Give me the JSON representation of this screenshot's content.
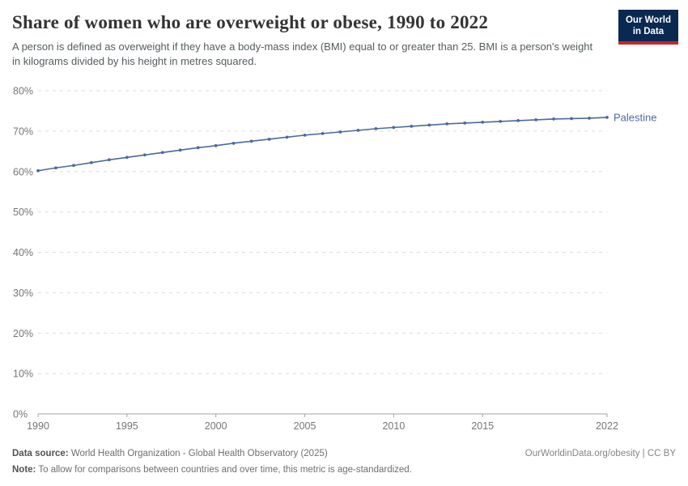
{
  "header": {
    "title": "Share of women who are overweight or obese, 1990 to 2022",
    "subtitle": "A person is defined as overweight if they have a body-mass index (BMI) equal to or greater than 25. BMI is a person's weight in kilograms divided by his height in metres squared.",
    "logo": {
      "line1": "Our World",
      "line2": "in Data"
    }
  },
  "colors": {
    "line": "#4C6A9E",
    "logo_bg": "#0A2951",
    "logo_red": "#C5262E",
    "gridline": "#DBDBDB",
    "axis": "#A3A3A3",
    "tick_label": "#757575"
  },
  "chart_data": {
    "type": "line",
    "title": "Share of women who are overweight or obese, 1990 to 2022",
    "xlabel": "",
    "ylabel": "",
    "x": [
      1990,
      1991,
      1992,
      1993,
      1994,
      1995,
      1996,
      1997,
      1998,
      1999,
      2000,
      2001,
      2002,
      2003,
      2004,
      2005,
      2006,
      2007,
      2008,
      2009,
      2010,
      2011,
      2012,
      2013,
      2014,
      2015,
      2016,
      2017,
      2018,
      2019,
      2020,
      2021,
      2022
    ],
    "series": [
      {
        "name": "Palestine",
        "color": "#4C6A9E",
        "values": [
          60.2,
          60.9,
          61.5,
          62.2,
          62.9,
          63.5,
          64.1,
          64.7,
          65.3,
          65.9,
          66.4,
          67.0,
          67.5,
          68.0,
          68.5,
          69.0,
          69.4,
          69.8,
          70.2,
          70.6,
          70.9,
          71.2,
          71.5,
          71.8,
          72.0,
          72.2,
          72.4,
          72.6,
          72.8,
          73.0,
          73.1,
          73.2,
          73.4
        ]
      }
    ],
    "xlim": [
      1990,
      2022
    ],
    "ylim": [
      0,
      80
    ],
    "xticks": [
      1990,
      1995,
      2000,
      2005,
      2010,
      2015,
      2022
    ],
    "yticks": [
      0,
      10,
      20,
      30,
      40,
      50,
      60,
      70,
      80
    ],
    "y_suffix": "%",
    "grid": "horizontal-dashed",
    "legend_position": "end-of-line-label"
  },
  "footer": {
    "datasource_label": "Data source:",
    "datasource_value": "World Health Organization - Global Health Observatory (2025)",
    "link": "OurWorldinData.org/obesity | CC BY",
    "note_label": "Note:",
    "note_value": "To allow for comparisons between countries and over time, this metric is age-standardized."
  }
}
